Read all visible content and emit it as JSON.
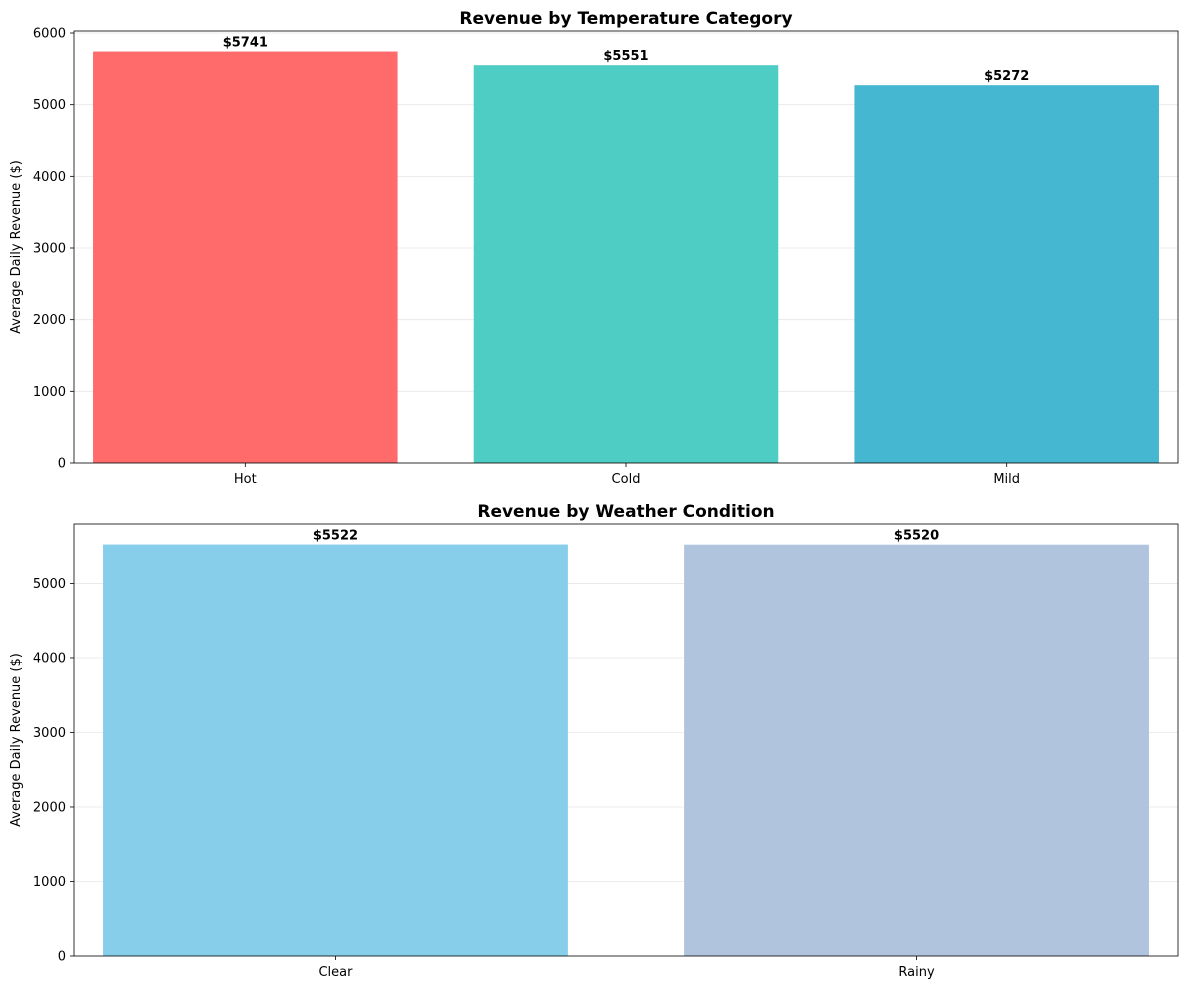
{
  "chart_data": [
    {
      "type": "bar",
      "title": "Revenue by Temperature Category",
      "xlabel": "",
      "ylabel": "Average Daily Revenue ($)",
      "categories": [
        "Hot",
        "Cold",
        "Mild"
      ],
      "values": [
        5741,
        5551,
        5272
      ],
      "data_labels": [
        "$5741",
        "$5551",
        "$5272"
      ],
      "colors": [
        "#ff6b6b",
        "#4ecdc4",
        "#45b7d1"
      ],
      "ylim": [
        0,
        6028
      ],
      "yticks": [
        0,
        1000,
        2000,
        3000,
        4000,
        5000,
        6000
      ],
      "ytick_labels": [
        "0",
        "1000",
        "2000",
        "3000",
        "4000",
        "5000",
        "6000"
      ],
      "grid": "y",
      "legend": "none"
    },
    {
      "type": "bar",
      "title": "Revenue by Weather Condition",
      "xlabel": "",
      "ylabel": "Average Daily Revenue ($)",
      "categories": [
        "Clear",
        "Rainy"
      ],
      "values": [
        5522,
        5520
      ],
      "data_labels": [
        "$5522",
        "$5520"
      ],
      "colors": [
        "#87ceeb",
        "#b0c4de"
      ],
      "ylim": [
        0,
        5798
      ],
      "yticks": [
        0,
        1000,
        2000,
        3000,
        4000,
        5000
      ],
      "ytick_labels": [
        "0",
        "1000",
        "2000",
        "3000",
        "4000",
        "5000"
      ],
      "grid": "y",
      "legend": "none"
    }
  ]
}
